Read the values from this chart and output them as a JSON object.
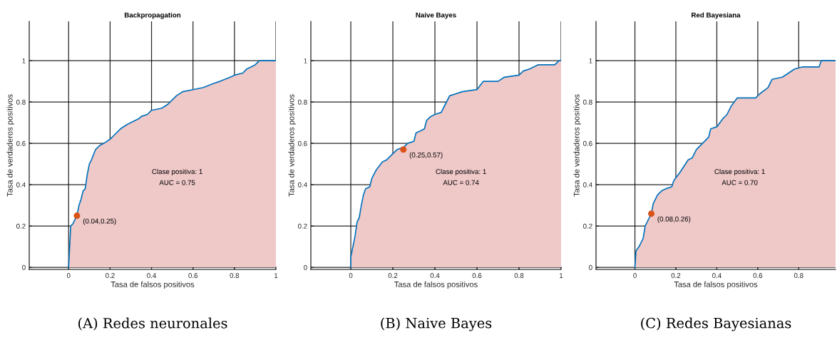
{
  "chart_data": [
    {
      "type": "area",
      "title": "Backpropagation",
      "xlabel": "Tasa de falsos positivos",
      "ylabel": "Tasa de verdaderos positivos",
      "xlim": [
        -0.19,
        1
      ],
      "ylim": [
        -0.01,
        1.19
      ],
      "xticks": [
        0,
        0.2,
        0.4,
        0.6,
        0.8,
        1
      ],
      "yticks": [
        0,
        0.2,
        0.4,
        0.6,
        0.8,
        1
      ],
      "grid": true,
      "legend": false,
      "series": [
        {
          "color": "#efc8c8",
          "x": [
            0,
            0.005,
            0.01,
            0.02,
            0.04,
            0.05,
            0.06,
            0.07,
            0.08,
            0.09,
            0.1,
            0.11,
            0.13,
            0.15,
            0.17,
            0.2,
            0.22,
            0.25,
            0.28,
            0.3,
            0.34,
            0.35,
            0.38,
            0.4,
            0.45,
            0.48,
            0.5,
            0.52,
            0.55,
            0.6,
            0.65,
            0.7,
            0.73,
            0.78,
            0.8,
            0.84,
            0.86,
            0.9,
            0.92,
            1
          ],
          "values": [
            0,
            0.1,
            0.2,
            0.21,
            0.25,
            0.3,
            0.33,
            0.37,
            0.38,
            0.45,
            0.5,
            0.52,
            0.57,
            0.59,
            0.6,
            0.62,
            0.64,
            0.67,
            0.69,
            0.7,
            0.72,
            0.73,
            0.74,
            0.76,
            0.77,
            0.79,
            0.81,
            0.83,
            0.85,
            0.86,
            0.87,
            0.89,
            0.9,
            0.92,
            0.93,
            0.94,
            0.96,
            0.98,
            1,
            1
          ]
        },
        {
          "type": "scatter",
          "color": "#d95319",
          "x": [
            0.04
          ],
          "values": [
            0.25
          ]
        }
      ],
      "annotations": [
        {
          "text": "(0.04,0.25)",
          "x": 0.04,
          "y": 0.25
        },
        "Clase positiva: 1\nAUC = 0.75",
        "(A) Redes neuronales"
      ]
    },
    {
      "type": "area",
      "title": "Naive Bayes",
      "xlabel": "Tasa de falsos positivos",
      "ylabel": "Tasa de verdaderos positivos",
      "xlim": [
        -0.19,
        1
      ],
      "ylim": [
        -0.01,
        1.19
      ],
      "xticks": [
        0,
        0.2,
        0.4,
        0.6,
        0.8,
        1
      ],
      "yticks": [
        0,
        0.2,
        0.4,
        0.6,
        0.8,
        1
      ],
      "grid": true,
      "legend": false,
      "series": [
        {
          "color": "#efc8c8",
          "x": [
            0,
            0,
            0.01,
            0.02,
            0.03,
            0.04,
            0.05,
            0.06,
            0.07,
            0.09,
            0.1,
            0.12,
            0.15,
            0.17,
            0.2,
            0.22,
            0.25,
            0.27,
            0.3,
            0.31,
            0.33,
            0.35,
            0.36,
            0.38,
            0.4,
            0.43,
            0.45,
            0.47,
            0.5,
            0.53,
            0.6,
            0.63,
            0.7,
            0.73,
            0.8,
            0.82,
            0.85,
            0.89,
            0.97,
            0.99,
            1
          ],
          "values": [
            0,
            0.05,
            0.1,
            0.15,
            0.22,
            0.24,
            0.3,
            0.35,
            0.38,
            0.39,
            0.43,
            0.47,
            0.51,
            0.52,
            0.55,
            0.57,
            0.58,
            0.6,
            0.61,
            0.65,
            0.66,
            0.67,
            0.71,
            0.73,
            0.74,
            0.75,
            0.79,
            0.83,
            0.84,
            0.85,
            0.86,
            0.9,
            0.9,
            0.92,
            0.93,
            0.95,
            0.96,
            0.98,
            0.98,
            1,
            1
          ]
        },
        {
          "type": "scatter",
          "color": "#d95319",
          "x": [
            0.25
          ],
          "values": [
            0.57
          ]
        }
      ],
      "annotations": [
        {
          "text": "(0.25,0.57)",
          "x": 0.25,
          "y": 0.57
        },
        "Clase positiva: 1\nAUC = 0.74",
        "(B) Naive Bayes"
      ]
    },
    {
      "type": "area",
      "title": "Red Bayesiana",
      "xlabel": "Tasa de falsos positivos",
      "ylabel": "Tasa de verdaderos positivos",
      "xlim": [
        -0.19,
        0.98
      ],
      "ylim": [
        -0.01,
        1.19
      ],
      "xticks": [
        0,
        0.2,
        0.4,
        0.6,
        0.8
      ],
      "yticks": [
        0,
        0.2,
        0.4,
        0.6,
        0.8,
        1
      ],
      "grid": true,
      "legend": false,
      "series": [
        {
          "color": "#efc8c8",
          "x": [
            0,
            0.005,
            0.02,
            0.04,
            0.05,
            0.07,
            0.08,
            0.09,
            0.1,
            0.11,
            0.13,
            0.15,
            0.18,
            0.19,
            0.22,
            0.24,
            0.26,
            0.28,
            0.3,
            0.33,
            0.36,
            0.37,
            0.4,
            0.43,
            0.45,
            0.47,
            0.5,
            0.59,
            0.61,
            0.65,
            0.67,
            0.72,
            0.75,
            0.78,
            0.82,
            0.9,
            0.91,
            0.98
          ],
          "values": [
            0,
            0.08,
            0.1,
            0.14,
            0.2,
            0.24,
            0.26,
            0.31,
            0.33,
            0.35,
            0.37,
            0.38,
            0.39,
            0.42,
            0.46,
            0.49,
            0.52,
            0.53,
            0.57,
            0.6,
            0.63,
            0.67,
            0.68,
            0.72,
            0.74,
            0.78,
            0.82,
            0.82,
            0.84,
            0.87,
            0.91,
            0.92,
            0.94,
            0.96,
            0.97,
            0.97,
            1,
            1
          ]
        },
        {
          "type": "scatter",
          "color": "#d95319",
          "x": [
            0.08
          ],
          "values": [
            0.26
          ]
        }
      ],
      "annotations": [
        {
          "text": "(0.08,0.26)",
          "x": 0.08,
          "y": 0.26
        },
        "Clase positiva: 1\nAUC = 0.70",
        "(C) Redes Bayesianas"
      ]
    }
  ]
}
